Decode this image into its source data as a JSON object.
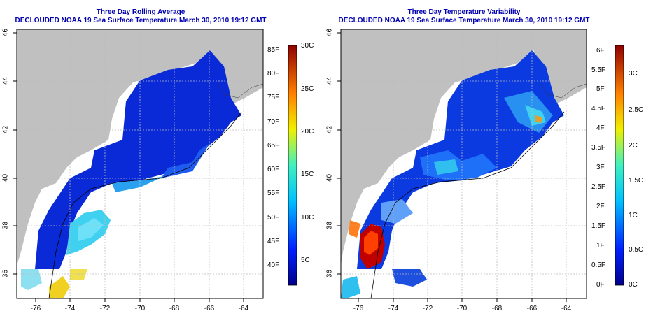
{
  "left": {
    "title_line1": "Three Day Rolling Average",
    "title_line2": "DECLOUDED NOAA 19 Sea Surface Temperature March 30, 2010 19:12 GMT",
    "x_ticks": [
      "-76",
      "-74",
      "-72",
      "-70",
      "-68",
      "-66",
      "-64"
    ],
    "y_ticks": [
      "36",
      "38",
      "40",
      "42",
      "44",
      "46"
    ],
    "cb_left_labels": [
      "85F",
      "80F",
      "75F",
      "70F",
      "65F",
      "60F",
      "55F",
      "50F",
      "45F",
      "40F"
    ],
    "cb_right_labels": [
      "30C",
      "25C",
      "20C",
      "15C",
      "10C",
      "5C"
    ]
  },
  "right": {
    "title_line1": "Three Day Temperature Variability",
    "title_line2": "DECLOUDED NOAA 19 Sea Surface Temperature March 30, 2010 19:12 GMT",
    "x_ticks": [
      "-76",
      "-74",
      "-72",
      "-70",
      "-68",
      "-66",
      "-64"
    ],
    "y_ticks": [
      "36",
      "38",
      "40",
      "42",
      "44",
      "46"
    ],
    "cb_left_labels": [
      "6F",
      "5.5F",
      "5F",
      "4.5F",
      "4F",
      "3.5F",
      "3F",
      "2.5F",
      "2F",
      "1.5F",
      "1F",
      "0.5F",
      "0F"
    ],
    "cb_right_labels": [
      "3C",
      "2.5C",
      "2C",
      "1.5C",
      "1C",
      "0.5C",
      "0C"
    ]
  },
  "colors": {
    "land": "#c0c0c0",
    "water_deep": "#0a2ad8",
    "title": "#0000b0",
    "no_data": "#ffffff"
  }
}
